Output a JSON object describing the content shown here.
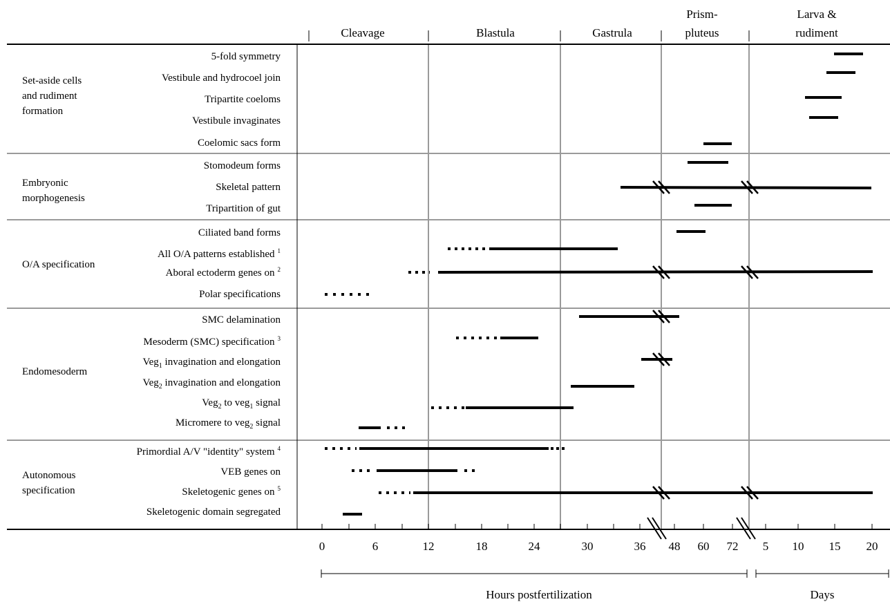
{
  "stages": [
    {
      "label": "Cleavage"
    },
    {
      "label": "Blastula"
    },
    {
      "label": "Gastrula"
    },
    {
      "label": "Prism-",
      "label2": "pluteus"
    },
    {
      "label": "Larva &",
      "label2": "rudiment"
    }
  ],
  "groups": [
    {
      "label": [
        "Set-aside cells",
        "and rudiment",
        "formation"
      ]
    },
    {
      "label": [
        "Embryonic",
        "morphogenesis"
      ]
    },
    {
      "label": [
        "O/A specification"
      ]
    },
    {
      "label": [
        "Endomesoderm"
      ]
    },
    {
      "label": [
        "Autonomous",
        "specification"
      ]
    }
  ],
  "rows": [
    {
      "label": "5-fold symmetry",
      "sup": ""
    },
    {
      "label": "Vestibule and hydrocoel join",
      "sup": ""
    },
    {
      "label": "Tripartite coeloms",
      "sup": ""
    },
    {
      "label": "Vestibule invaginates",
      "sup": ""
    },
    {
      "label": "Coelomic sacs form",
      "sup": ""
    },
    {
      "label": "Stomodeum forms",
      "sup": ""
    },
    {
      "label": "Skeletal pattern",
      "sup": ""
    },
    {
      "label": "Tripartition of gut",
      "sup": ""
    },
    {
      "label": "Ciliated band forms",
      "sup": ""
    },
    {
      "label": "All O/A patterns established",
      "sup": "1"
    },
    {
      "label": "Aboral ectoderm genes on",
      "sup": "2"
    },
    {
      "label": "Polar specifications",
      "sup": ""
    },
    {
      "label": "SMC delamination",
      "sup": ""
    },
    {
      "label": "Mesoderm (SMC) specification",
      "sup": "3"
    },
    {
      "label": [
        "Veg",
        "1",
        " invagination and elongation"
      ],
      "sup": ""
    },
    {
      "label": [
        "Veg",
        "2",
        " invagination and elongation"
      ],
      "sup": ""
    },
    {
      "label": [
        "Veg",
        "2",
        " to veg",
        "1",
        " signal"
      ],
      "sup": ""
    },
    {
      "label": [
        "Micromere to veg",
        "2",
        " signal"
      ],
      "sup": ""
    },
    {
      "label": "Primordial A/V \"identity\" system",
      "sup": "4"
    },
    {
      "label": "VEB genes on",
      "sup": ""
    },
    {
      "label": "Skeletogenic genes on",
      "sup": "5"
    },
    {
      "label": "Skeletogenic domain segregated",
      "sup": ""
    }
  ],
  "tick_labels": [
    "0",
    "6",
    "12",
    "18",
    "24",
    "30",
    "36",
    "48",
    "60",
    "72",
    "5",
    "10",
    "15",
    "20"
  ],
  "axis": {
    "hours_label": "Hours postfertilization",
    "days_label": "Days"
  }
}
